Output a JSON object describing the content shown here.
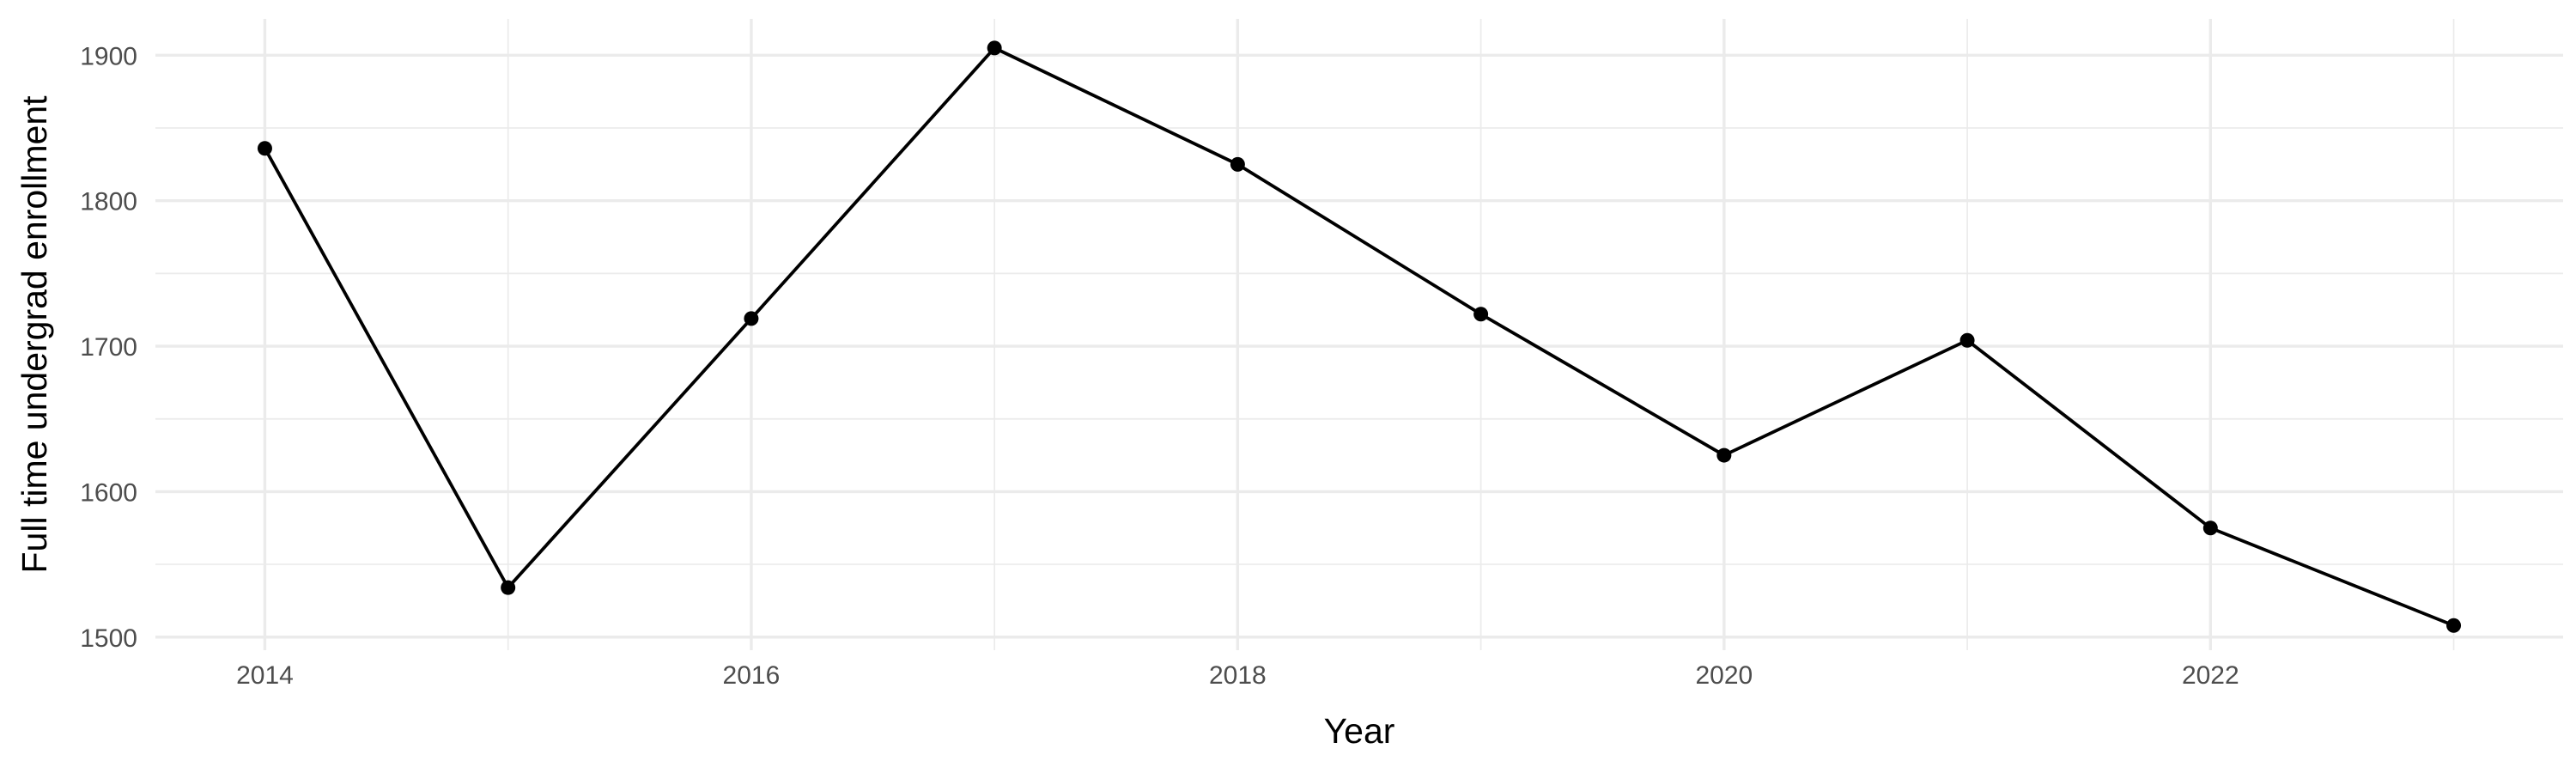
{
  "chart_data": {
    "type": "line",
    "title": "",
    "xlabel": "Year",
    "ylabel": "Full time undergrad enrollment",
    "x": [
      2014,
      2015,
      2016,
      2017,
      2018,
      2019,
      2020,
      2021,
      2022,
      2023
    ],
    "series": [
      {
        "values": [
          1836,
          1534,
          1719,
          1905,
          1825,
          1722,
          1625,
          1704,
          1575,
          1508
        ]
      }
    ],
    "xlim": [
      2013.55,
      2023.45
    ],
    "ylim": [
      1491,
      1925
    ],
    "x_ticks": [
      2014,
      2016,
      2018,
      2020,
      2022
    ],
    "x_tick_labels": [
      "2014",
      "2016",
      "2018",
      "2020",
      "2022"
    ],
    "y_ticks": [
      1500,
      1600,
      1700,
      1800,
      1900
    ],
    "y_tick_labels": [
      "1500",
      "1600",
      "1700",
      "1800",
      "1900"
    ],
    "grid": true,
    "legend": "none",
    "colors": {
      "line": "#000000",
      "point": "#000000",
      "grid": "#ebebeb",
      "tick_text": "#4d4d4d",
      "background": "#ffffff"
    }
  }
}
